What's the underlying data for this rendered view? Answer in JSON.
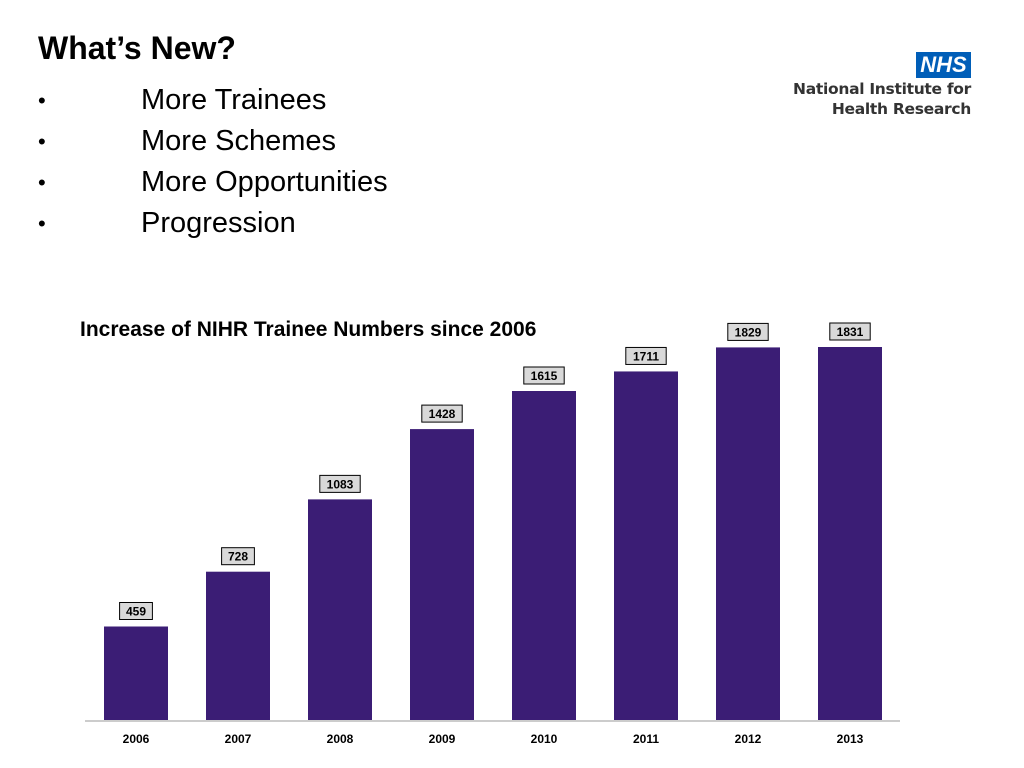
{
  "slide": {
    "title": "What’s New?",
    "bullets": [
      {
        "mark": "•",
        "text": "More Trainees"
      },
      {
        "mark": "•",
        "text": "More Schemes"
      },
      {
        "mark": "•",
        "text": "More Opportunities"
      },
      {
        "mark": "•",
        "text": "Progression"
      }
    ]
  },
  "logo": {
    "badge": "NHS",
    "line1": "National Institute for",
    "line2": "Health Research",
    "badge_color": "#005EB8"
  },
  "chart_data": {
    "type": "bar",
    "title": "Increase of NIHR Trainee Numbers since 2006",
    "xlabel": "",
    "ylabel": "",
    "categories": [
      "2006",
      "2007",
      "2008",
      "2009",
      "2010",
      "2011",
      "2012",
      "2013"
    ],
    "values": [
      459,
      728,
      1083,
      1428,
      1615,
      1711,
      1829,
      1831
    ],
    "data_labels": [
      "459",
      "728",
      "1083",
      "1428",
      "1615",
      "1711",
      "1829",
      "1831"
    ],
    "ylim": [
      0,
      1831
    ],
    "grid": false,
    "legend": "none",
    "bar_color": "#3B1D75"
  }
}
